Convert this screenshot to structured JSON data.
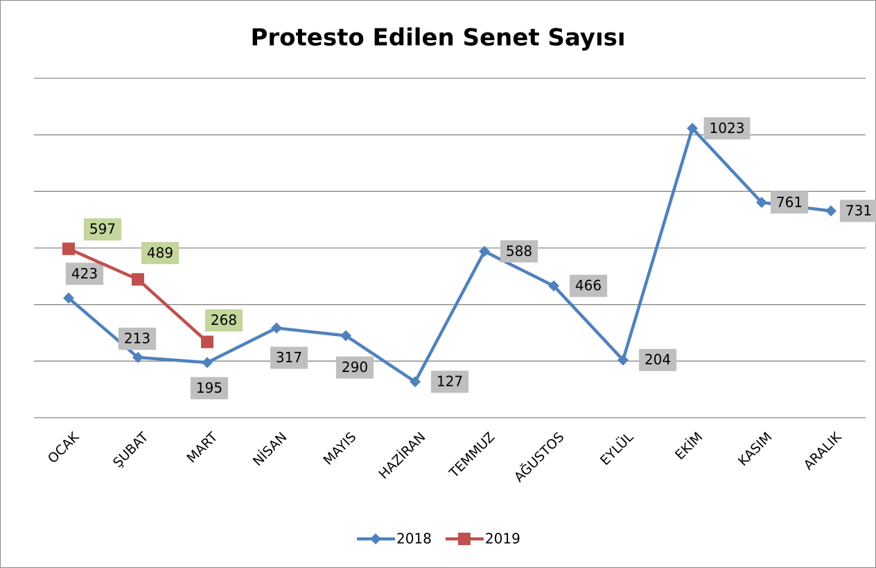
{
  "chart_data": {
    "type": "line",
    "title": "Protesto Edilen Senet Sayısı",
    "categories": [
      "OCAK",
      "ŞUBAT",
      "MART",
      "NİSAN",
      "MAYIS",
      "HAZİRAN",
      "TEMMUZ",
      "AĞUSTOS",
      "EYLÜL",
      "EKİM",
      "KASIM",
      "ARALIK"
    ],
    "series": [
      {
        "name": "2018",
        "color": "#4f81bd",
        "label_color": "#bfbfbf",
        "values": [
          423,
          213,
          195,
          317,
          290,
          127,
          588,
          466,
          204,
          1023,
          761,
          731
        ]
      },
      {
        "name": "2019",
        "color": "#c0504d",
        "label_color": "#c3d69b",
        "values": [
          597,
          489,
          268,
          null,
          null,
          null,
          null,
          null,
          null,
          null,
          null,
          null
        ]
      }
    ],
    "ylim": [
      0,
      1200
    ],
    "yticks": [
      0,
      200,
      400,
      600,
      800,
      1000,
      1200
    ],
    "grid": true,
    "legend": "bottom"
  }
}
